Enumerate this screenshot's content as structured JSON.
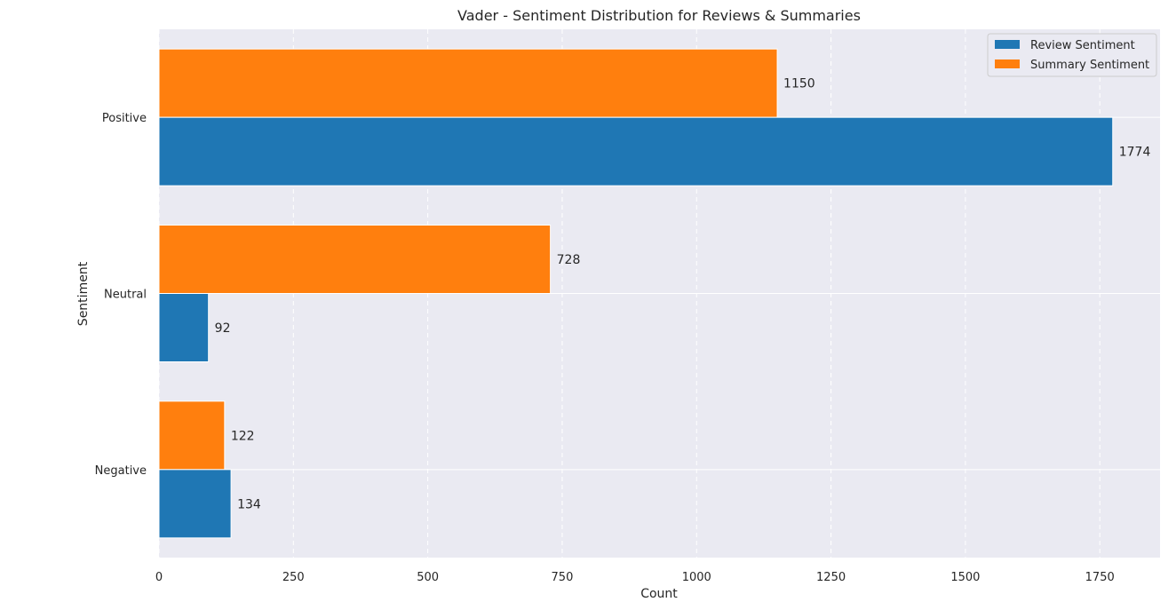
{
  "chart_data": {
    "type": "bar",
    "orientation": "horizontal",
    "title": "Vader - Sentiment Distribution for Reviews & Summaries",
    "xlabel": "Count",
    "ylabel": "Sentiment",
    "categories": [
      "Positive",
      "Neutral",
      "Negative"
    ],
    "series": [
      {
        "name": "Review Sentiment",
        "color": "#1f77b4",
        "values": [
          1774,
          92,
          134
        ]
      },
      {
        "name": "Summary Sentiment",
        "color": "#ff7f0e",
        "values": [
          1150,
          728,
          122
        ]
      }
    ],
    "xlim": [
      0,
      1862
    ],
    "xticks": [
      0,
      250,
      500,
      750,
      1000,
      1250,
      1500,
      1750
    ],
    "grid": true,
    "legend_position": "top-right",
    "data_labels": true,
    "background_color": "#eaeaf2"
  }
}
